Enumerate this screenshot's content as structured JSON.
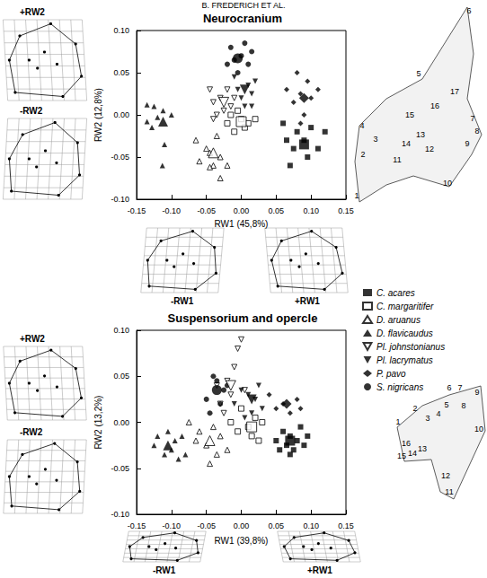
{
  "header": "B. FREDERICH ET AL.",
  "chart_data": [
    {
      "type": "scatter",
      "title": "Neurocranium",
      "x_label": "RW1 (45,8%)",
      "y_label": "RW2 (12,8%)",
      "xlim": [
        -0.15,
        0.15
      ],
      "ylim": [
        -0.1,
        0.1
      ],
      "xticks": [
        {
          "value": -0.15,
          "label": "-0.15"
        },
        {
          "value": -0.1,
          "label": "-0.10"
        },
        {
          "value": -0.05,
          "label": "-0.05"
        },
        {
          "value": 0,
          "label": "0.00"
        },
        {
          "value": 0.05,
          "label": "0.05"
        },
        {
          "value": 0.1,
          "label": "0.10"
        },
        {
          "value": 0.15,
          "label": "0.15"
        }
      ],
      "yticks": [
        {
          "value": -0.1,
          "label": "-0.10"
        },
        {
          "value": -0.05,
          "label": "-0.05"
        },
        {
          "value": 0,
          "label": "0.00"
        },
        {
          "value": 0.05,
          "label": "0.05"
        },
        {
          "value": 0.1,
          "label": "0.10"
        }
      ],
      "grid": false,
      "legend": "right",
      "warp_labels": [
        "+RW2",
        "-RW2",
        "-RW1",
        "+RW1"
      ],
      "landmarks": [
        "1",
        "2",
        "3",
        "4",
        "5",
        "6",
        "7",
        "8",
        "9",
        "10",
        "11",
        "12",
        "13",
        "14",
        "15",
        "16",
        "17"
      ],
      "series": [
        {
          "name": "C. acares",
          "marker": "square",
          "color": "#000000",
          "values": [
            [
              0.06,
              -0.01
            ],
            [
              0.065,
              -0.03
            ],
            [
              0.075,
              -0.04
            ],
            [
              0.08,
              -0.02
            ],
            [
              0.09,
              -0.03
            ],
            [
              0.095,
              -0.05
            ],
            [
              0.1,
              -0.015
            ],
            [
              0.11,
              -0.04
            ],
            [
              0.12,
              -0.02
            ],
            [
              0.07,
              -0.06
            ]
          ],
          "mean": [
            0.09,
            -0.035
          ]
        },
        {
          "name": "C. margaritifer",
          "marker": "open-square",
          "color": "#000000",
          "values": [
            [
              -0.02,
              -0.01
            ],
            [
              -0.01,
              -0.02
            ],
            [
              0.0,
              -0.005
            ],
            [
              0.005,
              -0.015
            ],
            [
              -0.005,
              0.005
            ],
            [
              0.01,
              -0.01
            ],
            [
              -0.015,
              0.0
            ],
            [
              0.02,
              -0.005
            ]
          ],
          "mean": [
            0.0,
            -0.008
          ]
        },
        {
          "name": "D. aruanus",
          "marker": "open-triangle",
          "color": "#000000",
          "values": [
            [
              -0.065,
              -0.03
            ],
            [
              -0.06,
              -0.055
            ],
            [
              -0.05,
              -0.04
            ],
            [
              -0.045,
              -0.045
            ],
            [
              -0.04,
              -0.06
            ],
            [
              -0.035,
              -0.025
            ],
            [
              -0.03,
              -0.05
            ],
            [
              -0.03,
              -0.075
            ],
            [
              -0.02,
              -0.06
            ],
            [
              -0.045,
              -0.062
            ]
          ],
          "mean": [
            -0.04,
            -0.045
          ]
        },
        {
          "name": "D. flavicaudus",
          "marker": "triangle",
          "color": "#000000",
          "values": [
            [
              -0.135,
              0.012
            ],
            [
              -0.125,
              0.01
            ],
            [
              -0.12,
              -0.003
            ],
            [
              -0.112,
              0.005
            ],
            [
              -0.128,
              -0.015
            ],
            [
              -0.11,
              -0.035
            ],
            [
              -0.113,
              -0.06
            ],
            [
              -0.135,
              -0.008
            ],
            [
              -0.1,
              0.0
            ]
          ],
          "mean": [
            -0.112,
            -0.008
          ]
        },
        {
          "name": "Pl. johnstonianus",
          "marker": "open-triangle-down",
          "color": "#000000",
          "values": [
            [
              -0.045,
              0.03
            ],
            [
              -0.04,
              0.015
            ],
            [
              -0.035,
              0.0
            ],
            [
              -0.03,
              0.02
            ],
            [
              -0.02,
              0.03
            ],
            [
              -0.025,
              0.005
            ],
            [
              -0.015,
              0.01
            ],
            [
              -0.04,
              -0.005
            ],
            [
              -0.01,
              0.02
            ]
          ],
          "mean": [
            -0.025,
            0.015
          ]
        },
        {
          "name": "Pl. lacrymatus",
          "marker": "triangle-down",
          "color": "#000000",
          "values": [
            [
              -0.005,
              0.03
            ],
            [
              0.0,
              0.02
            ],
            [
              0.01,
              0.035
            ],
            [
              0.015,
              0.025
            ],
            [
              0.02,
              0.04
            ],
            [
              0.005,
              0.01
            ],
            [
              -0.01,
              0.045
            ],
            [
              0.015,
              0.01
            ]
          ],
          "mean": [
            0.005,
            0.03
          ]
        },
        {
          "name": "P. pavo",
          "marker": "diamond",
          "color": "#000000",
          "values": [
            [
              0.065,
              0.03
            ],
            [
              0.075,
              0.015
            ],
            [
              0.08,
              0.05
            ],
            [
              0.085,
              0.025
            ],
            [
              0.09,
              0.0
            ],
            [
              0.095,
              0.04
            ],
            [
              0.1,
              0.02
            ],
            [
              0.11,
              0.03
            ],
            [
              0.085,
              -0.01
            ]
          ],
          "mean": [
            0.09,
            0.02
          ]
        },
        {
          "name": "S. nigricans",
          "marker": "circle",
          "color": "#000000",
          "values": [
            [
              -0.015,
              0.08
            ],
            [
              -0.01,
              0.065
            ],
            [
              0.0,
              0.07
            ],
            [
              -0.005,
              0.05
            ],
            [
              0.01,
              0.06
            ],
            [
              0.015,
              0.075
            ],
            [
              -0.02,
              0.06
            ],
            [
              0.005,
              0.085
            ]
          ],
          "mean": [
            -0.005,
            0.067
          ]
        }
      ]
    },
    {
      "type": "scatter",
      "title": "Suspensorium and opercle",
      "x_label": "RW1 (39,8%)",
      "y_label": "RW2 (13,2%)",
      "xlim": [
        -0.15,
        0.15
      ],
      "ylim": [
        -0.1,
        0.1
      ],
      "xticks": [
        {
          "value": -0.15,
          "label": "-0.15"
        },
        {
          "value": -0.1,
          "label": "-0.10"
        },
        {
          "value": -0.05,
          "label": "-0.05"
        },
        {
          "value": 0,
          "label": "0.00"
        },
        {
          "value": 0.05,
          "label": "0.05"
        },
        {
          "value": 0.1,
          "label": "0.10"
        },
        {
          "value": 0.15,
          "label": "0.15"
        }
      ],
      "yticks": [
        {
          "value": -0.1,
          "label": "-0.10"
        },
        {
          "value": -0.05,
          "label": "-0.05"
        },
        {
          "value": 0,
          "label": "0.00"
        },
        {
          "value": 0.05,
          "label": "0.05"
        },
        {
          "value": 0.1,
          "label": "0.10"
        }
      ],
      "grid": false,
      "warp_labels": [
        "+RW2",
        "-RW2",
        "-RW1",
        "+RW1"
      ],
      "landmarks": [
        "1",
        "2",
        "3",
        "4",
        "5",
        "6",
        "7",
        "8",
        "9",
        "10",
        "11",
        "12",
        "13",
        "14",
        "15",
        "16"
      ],
      "series": [
        {
          "name": "C. acares",
          "marker": "square",
          "color": "#000000",
          "values": [
            [
              0.05,
              -0.02
            ],
            [
              0.055,
              -0.03
            ],
            [
              0.06,
              -0.01
            ],
            [
              0.065,
              -0.025
            ],
            [
              0.07,
              -0.015
            ],
            [
              0.075,
              -0.03
            ],
            [
              0.08,
              -0.02
            ],
            [
              0.085,
              -0.005
            ],
            [
              0.09,
              -0.025
            ],
            [
              0.095,
              -0.015
            ],
            [
              0.07,
              -0.035
            ]
          ],
          "mean": [
            0.07,
            -0.02
          ]
        },
        {
          "name": "C. margaritifer",
          "marker": "open-square",
          "color": "#000000",
          "values": [
            [
              -0.015,
              0.0
            ],
            [
              -0.005,
              -0.01
            ],
            [
              0.0,
              0.015
            ],
            [
              0.01,
              -0.005
            ],
            [
              0.015,
              -0.015
            ],
            [
              0.02,
              0.005
            ],
            [
              0.025,
              -0.02
            ],
            [
              0.03,
              0.0
            ]
          ],
          "mean": [
            0.015,
            -0.005
          ]
        },
        {
          "name": "D. aruanus",
          "marker": "open-triangle",
          "color": "#000000",
          "values": [
            [
              -0.075,
              0.0
            ],
            [
              -0.065,
              -0.02
            ],
            [
              -0.06,
              -0.01
            ],
            [
              -0.05,
              -0.025
            ],
            [
              -0.045,
              -0.045
            ],
            [
              -0.04,
              -0.005
            ],
            [
              -0.035,
              -0.035
            ],
            [
              -0.03,
              -0.015
            ],
            [
              -0.02,
              -0.03
            ]
          ],
          "mean": [
            -0.045,
            -0.02
          ]
        },
        {
          "name": "D. flavicaudus",
          "marker": "triangle",
          "color": "#000000",
          "values": [
            [
              -0.125,
              -0.025
            ],
            [
              -0.12,
              -0.015
            ],
            [
              -0.11,
              -0.035
            ],
            [
              -0.105,
              -0.01
            ],
            [
              -0.1,
              -0.03
            ],
            [
              -0.095,
              -0.02
            ],
            [
              -0.09,
              -0.04
            ],
            [
              -0.085,
              -0.015
            ],
            [
              -0.08,
              -0.035
            ]
          ],
          "mean": [
            -0.105,
            -0.025
          ]
        },
        {
          "name": "Pl. johnstonianus",
          "marker": "open-triangle-down",
          "color": "#000000",
          "values": [
            [
              -0.035,
              0.04
            ],
            [
              -0.03,
              0.02
            ],
            [
              -0.02,
              0.045
            ],
            [
              -0.015,
              0.03
            ],
            [
              -0.01,
              0.06
            ],
            [
              -0.005,
              0.08
            ],
            [
              0.0,
              0.09
            ],
            [
              -0.025,
              0.01
            ],
            [
              0.005,
              0.035
            ]
          ],
          "mean": [
            -0.015,
            0.04
          ]
        },
        {
          "name": "Pl. lacrymatus",
          "marker": "triangle-down",
          "color": "#000000",
          "values": [
            [
              -0.01,
              0.02
            ],
            [
              0.0,
              0.035
            ],
            [
              0.01,
              0.03
            ],
            [
              0.015,
              0.01
            ],
            [
              0.02,
              0.025
            ],
            [
              0.025,
              0.04
            ],
            [
              0.005,
              0.005
            ],
            [
              0.03,
              0.015
            ]
          ],
          "mean": [
            0.015,
            0.025
          ]
        },
        {
          "name": "P. pavo",
          "marker": "diamond",
          "color": "#000000",
          "values": [
            [
              0.04,
              0.03
            ],
            [
              0.06,
              0.02
            ],
            [
              0.07,
              0.01
            ],
            [
              0.05,
              0.015
            ],
            [
              0.08,
              0.025
            ],
            [
              0.085,
              0.015
            ]
          ],
          "mean": [
            0.065,
            0.02
          ]
        },
        {
          "name": "S. nigricans",
          "marker": "circle",
          "color": "#000000",
          "values": [
            [
              -0.05,
              0.025
            ],
            [
              -0.04,
              0.05
            ],
            [
              -0.03,
              0.02
            ],
            [
              -0.025,
              0.035
            ],
            [
              -0.02,
              0.04
            ],
            [
              -0.045,
              0.01
            ],
            [
              -0.035,
              0.045
            ]
          ],
          "mean": [
            -0.035,
            0.035
          ]
        }
      ]
    }
  ]
}
